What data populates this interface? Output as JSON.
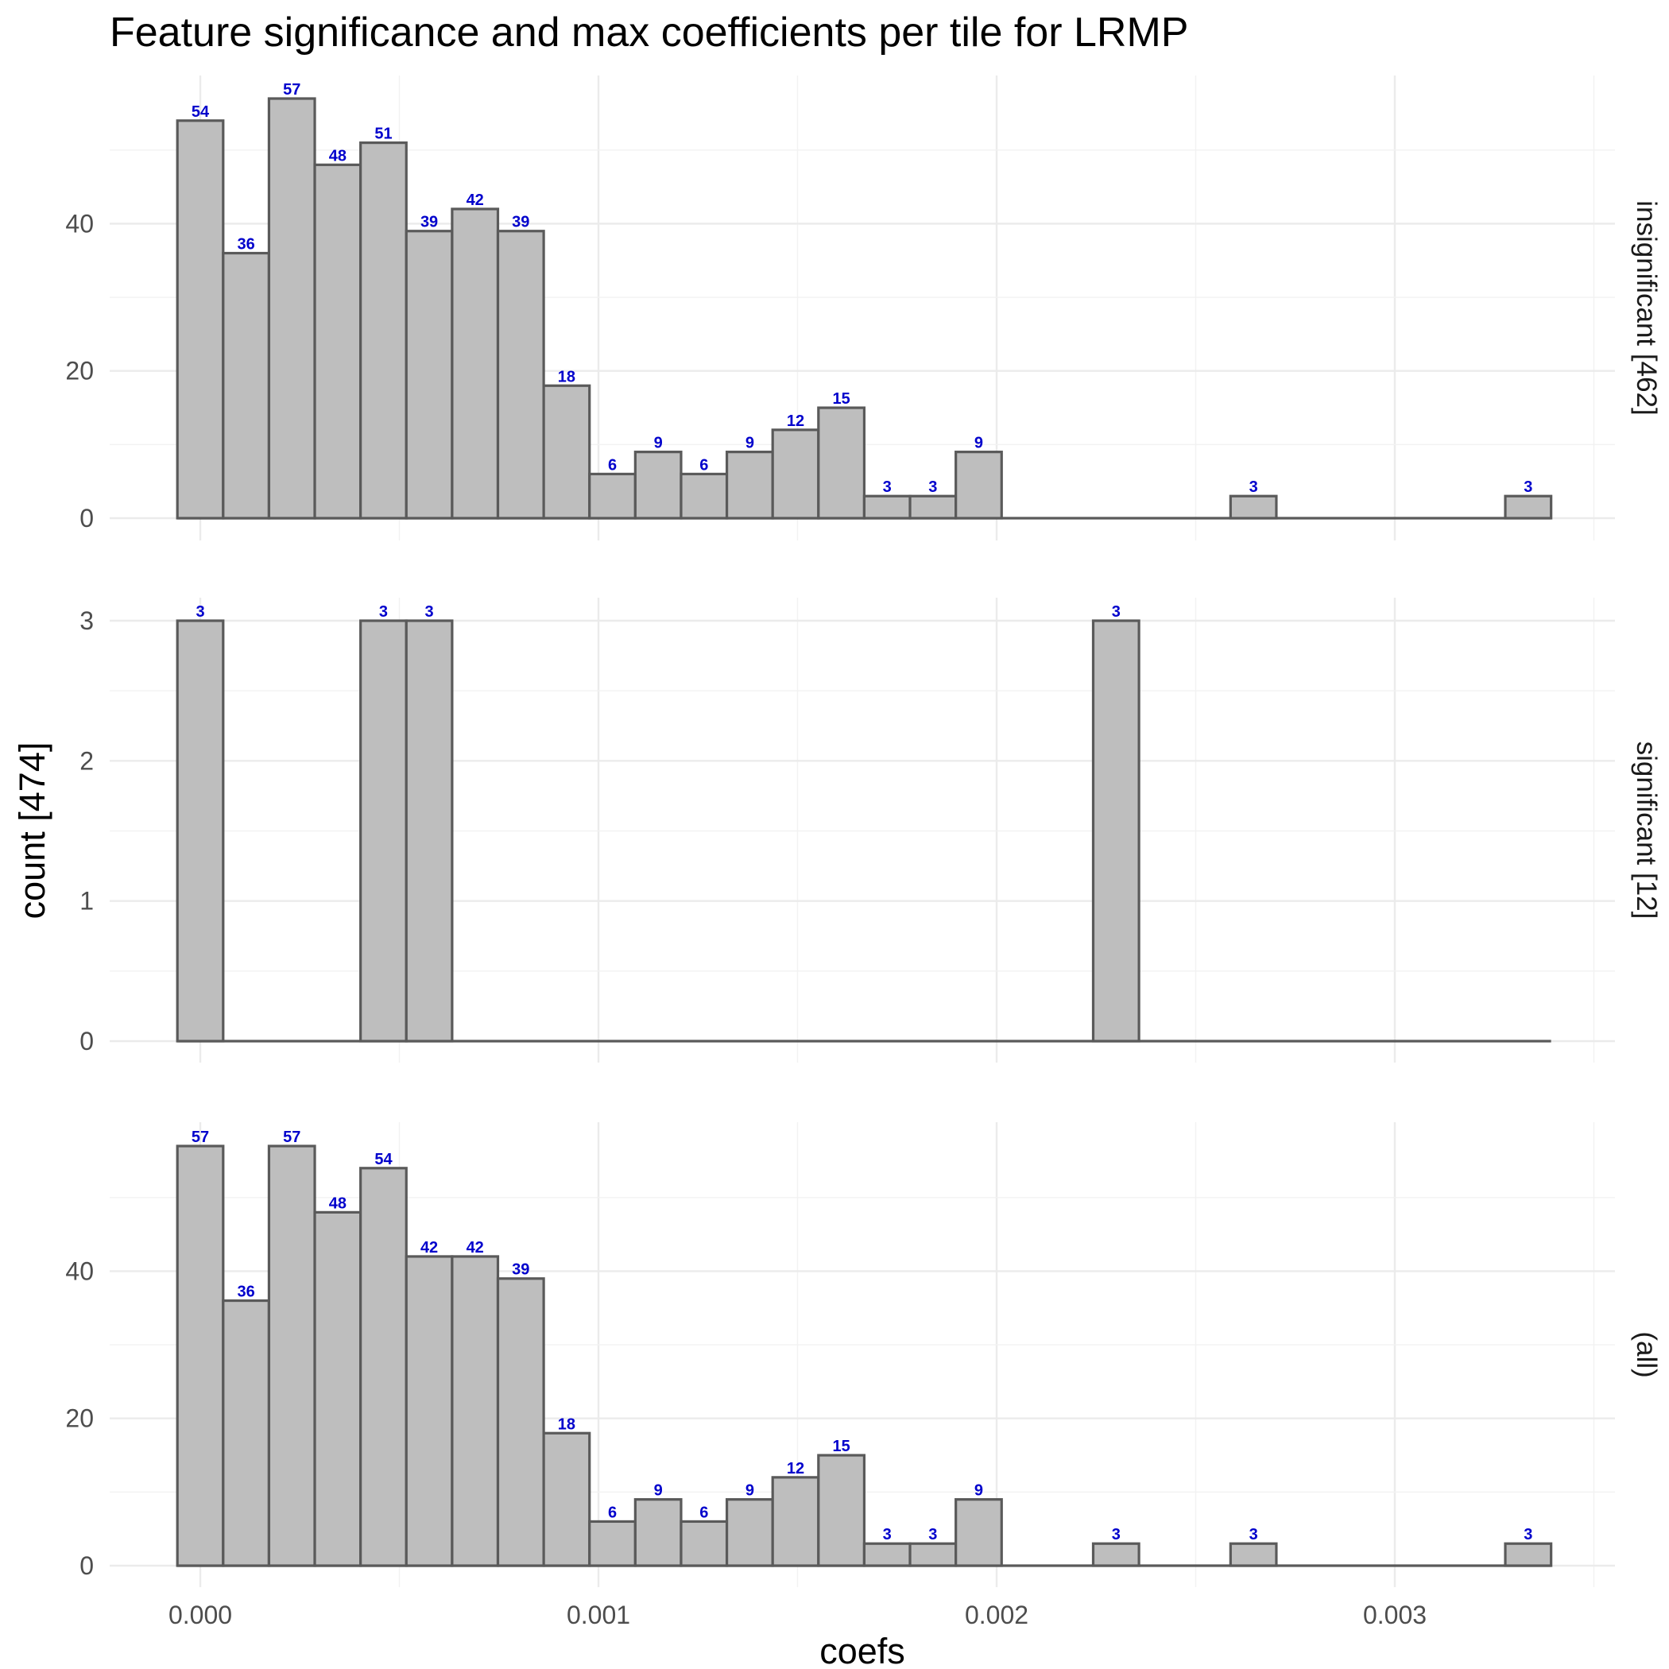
{
  "chart_data": {
    "type": "bar",
    "title": "Feature significance and max coefficients per tile for LRMP",
    "xlabel": "coefs",
    "ylabel": "count [474]",
    "xlim": [
      -0.000225,
      0.003555
    ],
    "x_ticks": [
      0.0,
      0.001,
      0.002,
      0.003
    ],
    "x_tick_labels": [
      "0.000",
      "0.001",
      "0.002",
      "0.003"
    ],
    "bin_width": 0.000115,
    "bin_centers": [
      0.0,
      0.000115,
      0.00023,
      0.000345,
      0.00046,
      0.000575,
      0.00069,
      0.000805,
      0.00092,
      0.001035,
      0.00115,
      0.001265,
      0.00138,
      0.001495,
      0.00161,
      0.001725,
      0.00184,
      0.001955,
      0.00207,
      0.002185,
      0.0023,
      0.002415,
      0.00253,
      0.002645,
      0.00276,
      0.002875,
      0.00299,
      0.003105,
      0.00322,
      0.003335
    ],
    "grid": true,
    "label_color": "#0000cc",
    "bar_fill": "#bebebe",
    "bar_stroke": "#5a5a5a",
    "facets": [
      {
        "strip": "insignificant [462]",
        "ylim": [
          0,
          57
        ],
        "y_ticks": [
          0,
          20,
          40
        ],
        "values": [
          54,
          36,
          57,
          48,
          51,
          39,
          42,
          39,
          18,
          6,
          9,
          6,
          9,
          12,
          15,
          3,
          3,
          9,
          0,
          0,
          0,
          0,
          0,
          3,
          0,
          0,
          0,
          0,
          0,
          3
        ]
      },
      {
        "strip": "significant [12]",
        "ylim": [
          0,
          3
        ],
        "y_ticks": [
          0,
          1,
          2,
          3
        ],
        "values": [
          3,
          0,
          0,
          0,
          3,
          3,
          0,
          0,
          0,
          0,
          0,
          0,
          0,
          0,
          0,
          0,
          0,
          0,
          0,
          0,
          3,
          0,
          0,
          0,
          0,
          0,
          0,
          0,
          0,
          0
        ]
      },
      {
        "strip": "(all)",
        "ylim": [
          0,
          57
        ],
        "y_ticks": [
          0,
          20,
          40
        ],
        "values": [
          57,
          36,
          57,
          48,
          54,
          42,
          42,
          39,
          18,
          6,
          9,
          6,
          9,
          12,
          15,
          3,
          3,
          9,
          0,
          0,
          3,
          0,
          0,
          3,
          0,
          0,
          0,
          0,
          0,
          3
        ]
      }
    ]
  }
}
